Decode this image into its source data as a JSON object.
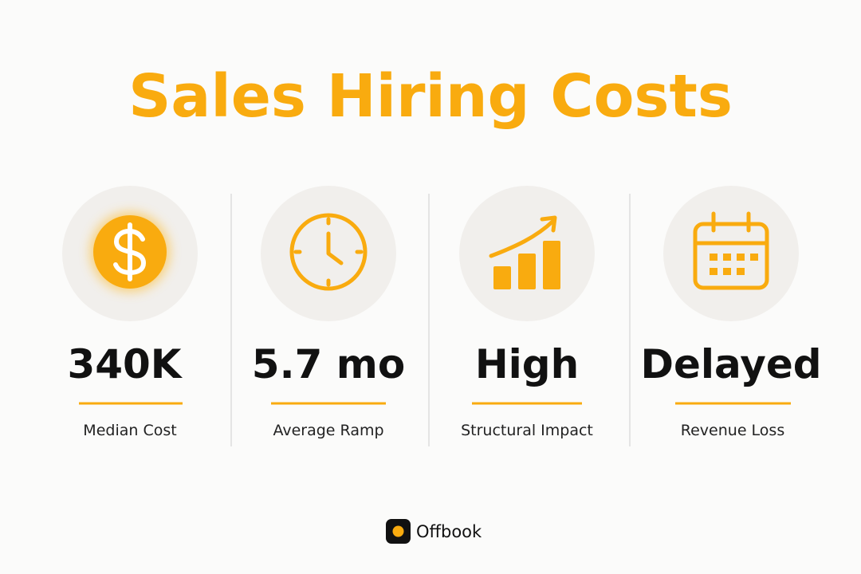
{
  "title": "Sales Hiring Costs",
  "stats": [
    {
      "value": "340K",
      "label": "Median Cost"
    },
    {
      "value": "5.7 mo",
      "label": "Average Ramp"
    },
    {
      "value": "High",
      "label": "Structural Impact"
    },
    {
      "value": "Delayed",
      "label": "Revenue Loss"
    }
  ],
  "brand": "Offbook"
}
